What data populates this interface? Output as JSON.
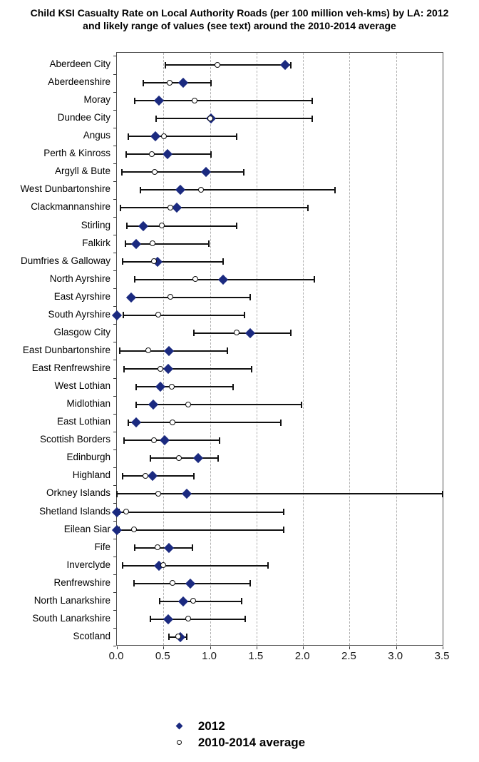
{
  "title": "Child KSI Casualty Rate on Local Authority Roads (per 100 million veh-kms)  by LA: 2012 and likely range of values (see text) around the 2010-2014 average",
  "colors": {
    "marker_2012": "#1b2a80",
    "range_line": "#111111",
    "gridline": "#b0b0b0",
    "plot_border": "#4d4d4d"
  },
  "legend": {
    "items": [
      {
        "label": "2012",
        "marker": "diamond-icon"
      },
      {
        "label": "2010-2014 average",
        "marker": "circle-icon"
      }
    ]
  },
  "chart_data": {
    "type": "scatter",
    "subtype": "horizontal-range-dot-plot",
    "orientation": "horizontal",
    "xlabel": "",
    "ylabel": "",
    "xlim": [
      0.0,
      3.5
    ],
    "xticks": [
      "0.0",
      "0.5",
      "1.0",
      "1.5",
      "2.0",
      "2.5",
      "3.0",
      "3.5"
    ],
    "grid": "vertical-dashed",
    "legend_position": "bottom-center",
    "series": [
      {
        "name": "2012",
        "marker": "filled-navy-diamond"
      },
      {
        "name": "2010-2014 average",
        "marker": "open-circle"
      },
      {
        "name": "likely range",
        "marker": "horizontal-line-with-caps"
      }
    ],
    "rows": [
      {
        "la": "Aberdeen City",
        "value_2012": 1.81,
        "avg_2010_2014": 1.08,
        "range_low": 0.52,
        "range_high": 1.87
      },
      {
        "la": "Aberdeenshire",
        "value_2012": 0.71,
        "avg_2010_2014": 0.57,
        "range_low": 0.28,
        "range_high": 1.01
      },
      {
        "la": "Moray",
        "value_2012": 0.45,
        "avg_2010_2014": 0.84,
        "range_low": 0.19,
        "range_high": 2.1
      },
      {
        "la": "Dundee City",
        "value_2012": 1.01,
        "avg_2010_2014": 1.01,
        "range_low": 0.42,
        "range_high": 2.1
      },
      {
        "la": "Angus",
        "value_2012": 0.41,
        "avg_2010_2014": 0.51,
        "range_low": 0.12,
        "range_high": 1.29
      },
      {
        "la": "Perth & Kinross",
        "value_2012": 0.54,
        "avg_2010_2014": 0.38,
        "range_low": 0.1,
        "range_high": 1.01
      },
      {
        "la": "Argyll & Bute",
        "value_2012": 0.96,
        "avg_2010_2014": 0.41,
        "range_low": 0.05,
        "range_high": 1.36
      },
      {
        "la": "West Dunbartonshire",
        "value_2012": 0.68,
        "avg_2010_2014": 0.91,
        "range_low": 0.25,
        "range_high": 2.34
      },
      {
        "la": "Clackmannanshire",
        "value_2012": 0.64,
        "avg_2010_2014": 0.58,
        "range_low": 0.04,
        "range_high": 2.05
      },
      {
        "la": "Stirling",
        "value_2012": 0.28,
        "avg_2010_2014": 0.49,
        "range_low": 0.11,
        "range_high": 1.29
      },
      {
        "la": "Falkirk",
        "value_2012": 0.21,
        "avg_2010_2014": 0.39,
        "range_low": 0.09,
        "range_high": 0.99
      },
      {
        "la": "Dumfries & Galloway",
        "value_2012": 0.44,
        "avg_2010_2014": 0.4,
        "range_low": 0.06,
        "range_high": 1.14
      },
      {
        "la": "North Ayrshire",
        "value_2012": 1.14,
        "avg_2010_2014": 0.85,
        "range_low": 0.19,
        "range_high": 2.12
      },
      {
        "la": "East Ayrshire",
        "value_2012": 0.15,
        "avg_2010_2014": 0.58,
        "range_low": 0.15,
        "range_high": 1.43
      },
      {
        "la": "South Ayrshire",
        "value_2012": 0.0,
        "avg_2010_2014": 0.45,
        "range_low": 0.07,
        "range_high": 1.37
      },
      {
        "la": "Glasgow City",
        "value_2012": 1.43,
        "avg_2010_2014": 1.29,
        "range_low": 0.83,
        "range_high": 1.87
      },
      {
        "la": "East Dunbartonshire",
        "value_2012": 0.56,
        "avg_2010_2014": 0.34,
        "range_low": 0.03,
        "range_high": 1.19
      },
      {
        "la": "East Renfrewshire",
        "value_2012": 0.55,
        "avg_2010_2014": 0.47,
        "range_low": 0.08,
        "range_high": 1.45
      },
      {
        "la": "West Lothian",
        "value_2012": 0.47,
        "avg_2010_2014": 0.59,
        "range_low": 0.21,
        "range_high": 1.25
      },
      {
        "la": "Midlothian",
        "value_2012": 0.39,
        "avg_2010_2014": 0.77,
        "range_low": 0.21,
        "range_high": 1.98
      },
      {
        "la": "East Lothian",
        "value_2012": 0.21,
        "avg_2010_2014": 0.6,
        "range_low": 0.12,
        "range_high": 1.76
      },
      {
        "la": "Scottish Borders",
        "value_2012": 0.51,
        "avg_2010_2014": 0.4,
        "range_low": 0.08,
        "range_high": 1.1
      },
      {
        "la": "Edinburgh",
        "value_2012": 0.87,
        "avg_2010_2014": 0.67,
        "range_low": 0.36,
        "range_high": 1.09
      },
      {
        "la": "Highland",
        "value_2012": 0.38,
        "avg_2010_2014": 0.31,
        "range_low": 0.06,
        "range_high": 0.83
      },
      {
        "la": "Orkney Islands",
        "value_2012": 0.75,
        "avg_2010_2014": 0.45,
        "range_low": 0.0,
        "range_high": 3.5
      },
      {
        "la": "Shetland Islands",
        "value_2012": 0.0,
        "avg_2010_2014": 0.1,
        "range_low": 0.02,
        "range_high": 1.79
      },
      {
        "la": "Eilean Siar",
        "value_2012": 0.0,
        "avg_2010_2014": 0.19,
        "range_low": 0.02,
        "range_high": 1.79
      },
      {
        "la": "Fife",
        "value_2012": 0.56,
        "avg_2010_2014": 0.44,
        "range_low": 0.19,
        "range_high": 0.81
      },
      {
        "la": "Inverclyde",
        "value_2012": 0.45,
        "avg_2010_2014": 0.5,
        "range_low": 0.06,
        "range_high": 1.62
      },
      {
        "la": "Renfrewshire",
        "value_2012": 0.79,
        "avg_2010_2014": 0.6,
        "range_low": 0.18,
        "range_high": 1.43
      },
      {
        "la": "North Lanarkshire",
        "value_2012": 0.71,
        "avg_2010_2014": 0.82,
        "range_low": 0.46,
        "range_high": 1.34
      },
      {
        "la": "South Lanarkshire",
        "value_2012": 0.55,
        "avg_2010_2014": 0.77,
        "range_low": 0.36,
        "range_high": 1.38
      },
      {
        "la": "Scotland",
        "value_2012": 0.68,
        "avg_2010_2014": 0.66,
        "range_low": 0.56,
        "range_high": 0.75
      }
    ]
  }
}
